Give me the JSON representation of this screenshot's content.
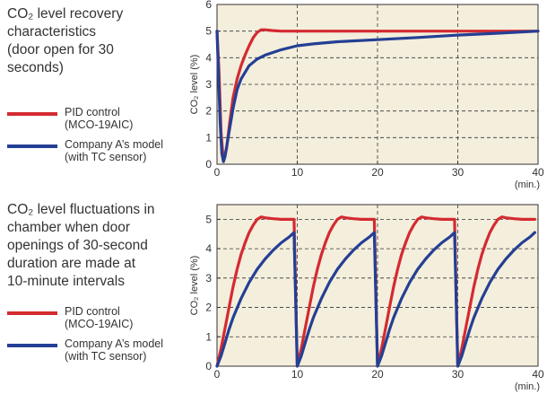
{
  "colors": {
    "pid": "#d42a31",
    "company_a": "#243f94",
    "plot_bg": "#f4eedc"
  },
  "chart_data": [
    {
      "type": "line",
      "caption": "CO₂ level recovery characteristics (door open for 30 seconds)",
      "caption_lines": [
        "CO₂ level recovery",
        "characteristics",
        "(door open for 30",
        "seconds)"
      ],
      "ylabel": "CO₂ level (%)",
      "xunit": "(min.)",
      "xlim": [
        0,
        40
      ],
      "ylim": [
        0,
        6
      ],
      "xticks": [
        "0",
        "10",
        "20",
        "30",
        "40"
      ],
      "yticks": [
        "0",
        "1",
        "2",
        "3",
        "4",
        "5",
        "6"
      ],
      "grid": true,
      "series": [
        {
          "legend": [
            "PID control",
            "(MCO-19AIC)"
          ],
          "color": "#d42a31",
          "x": [
            0,
            0.25,
            0.5,
            0.8,
            1.2,
            1.6,
            2,
            2.5,
            3,
            3.5,
            4,
            4.5,
            5,
            5.5,
            6,
            7,
            8,
            10,
            20,
            30,
            40
          ],
          "y": [
            5,
            3.5,
            1.2,
            0.1,
            0.6,
            1.6,
            2.5,
            3.2,
            3.7,
            4.1,
            4.45,
            4.75,
            4.95,
            5.05,
            5.05,
            5.02,
            5.0,
            5.0,
            5.0,
            5.0,
            5.0
          ]
        },
        {
          "legend": [
            "Company A’s model",
            "(with TC sensor)"
          ],
          "color": "#243f94",
          "x": [
            0,
            0.2,
            0.4,
            0.6,
            0.8,
            1,
            1.5,
            2,
            2.5,
            3,
            4,
            5,
            6,
            8,
            10,
            12,
            15,
            20,
            25,
            30,
            35,
            40
          ],
          "y": [
            5,
            3.2,
            1.5,
            0.4,
            0.1,
            0.3,
            1.2,
            2.1,
            2.8,
            3.2,
            3.7,
            3.95,
            4.1,
            4.3,
            4.45,
            4.52,
            4.6,
            4.68,
            4.76,
            4.85,
            4.92,
            5.0
          ]
        }
      ]
    },
    {
      "type": "line",
      "caption": "CO₂ level fluctuations in chamber when door openings of 30-second duration are made at 10-minute intervals",
      "caption_lines": [
        "CO₂ level fluctuations in",
        "chamber when door",
        "openings of 30-second",
        "duration are made at",
        "10-minute intervals"
      ],
      "ylabel": "CO₂ level (%)",
      "xunit": "(min.)",
      "xlim": [
        0,
        40
      ],
      "ylim": [
        0,
        5.5
      ],
      "xticks": [
        "0",
        "10",
        "20",
        "30",
        "40"
      ],
      "yticks": [
        "0",
        "1",
        "2",
        "3",
        "4",
        "5"
      ],
      "grid": true,
      "series": [
        {
          "legend": [
            "PID control",
            "(MCO-19AIC)"
          ],
          "color": "#d42a31",
          "cycle_x": [
            0,
            0.5,
            1,
            1.5,
            2,
            2.5,
            3,
            3.5,
            4,
            4.5,
            5,
            5.5,
            6,
            7,
            8,
            9,
            9.6
          ],
          "cycle_y": [
            0,
            0.6,
            1.3,
            2.0,
            2.7,
            3.3,
            3.8,
            4.2,
            4.55,
            4.8,
            5.0,
            5.08,
            5.05,
            5.02,
            5.0,
            5.0,
            5.0
          ]
        },
        {
          "legend": [
            "Company A’s model",
            "(with TC sensor)"
          ],
          "color": "#243f94",
          "cycle_x": [
            0,
            0.5,
            1,
            1.5,
            2,
            3,
            4,
            5,
            6,
            7,
            8,
            9,
            9.6
          ],
          "cycle_y": [
            0,
            0.35,
            0.8,
            1.25,
            1.65,
            2.3,
            2.85,
            3.3,
            3.65,
            3.95,
            4.2,
            4.4,
            4.55
          ]
        }
      ]
    }
  ]
}
